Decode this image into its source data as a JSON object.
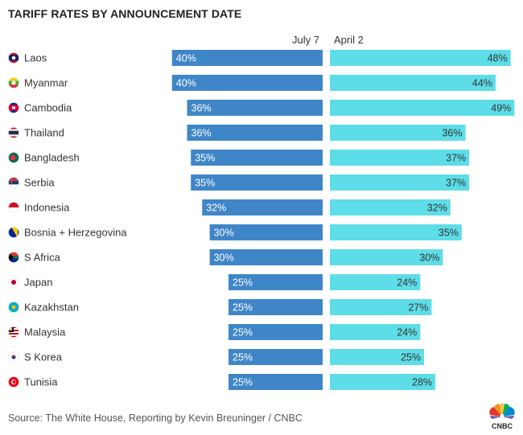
{
  "title": "TARIFF RATES BY ANNOUNCEMENT DATE",
  "source": "Source: The White House, Reporting by Kevin Breuninger / CNBC",
  "logo_text": "CNBC",
  "colors": {
    "july7_bar": "#3f86c8",
    "april2_bar": "#5ddde8"
  },
  "chart_data": {
    "type": "bar",
    "title": "TARIFF RATES BY ANNOUNCEMENT DATE",
    "orientation": "horizontal-diverging",
    "categories": [
      "Laos",
      "Myanmar",
      "Cambodia",
      "Thailand",
      "Bangladesh",
      "Serbia",
      "Indonesia",
      "Bosnia + Herzegovina",
      "S Africa",
      "Japan",
      "Kazakhstan",
      "Malaysia",
      "S Korea",
      "Tunisia"
    ],
    "flags": [
      "laos",
      "myanmar",
      "cambodia",
      "thailand",
      "bangladesh",
      "serbia",
      "indonesia",
      "bosnia",
      "south-africa",
      "japan",
      "kazakhstan",
      "malaysia",
      "south-korea",
      "tunisia"
    ],
    "series": [
      {
        "name": "July 7",
        "values": [
          40,
          40,
          36,
          36,
          35,
          35,
          32,
          30,
          30,
          25,
          25,
          25,
          25,
          25
        ]
      },
      {
        "name": "April 2",
        "values": [
          48,
          44,
          49,
          36,
          37,
          37,
          32,
          35,
          30,
          24,
          27,
          24,
          25,
          28
        ]
      }
    ],
    "value_suffix": "%",
    "xlim": [
      0,
      50
    ]
  }
}
